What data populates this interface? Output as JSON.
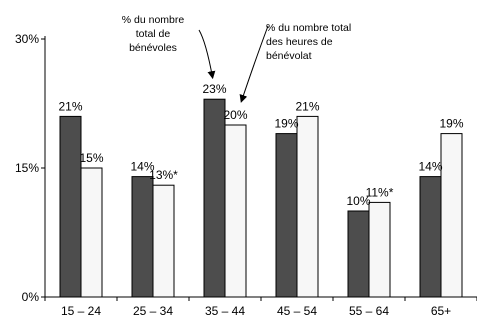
{
  "chart_data": {
    "type": "bar",
    "categories": [
      "15 – 24",
      "25 – 34",
      "35 – 44",
      "45 – 54",
      "55 – 64",
      "65+"
    ],
    "series": [
      {
        "name": "% du nombre total de bénévoles",
        "color": "#4d4d4d",
        "values": [
          21,
          14,
          23,
          19,
          10,
          14
        ],
        "labels": [
          "21%",
          "14%",
          "23%",
          "19%",
          "10%",
          "14%"
        ]
      },
      {
        "name": "% du nombre total des heures de bénévolat",
        "color": "#f7f7f7",
        "values": [
          15,
          13,
          20,
          21,
          11,
          19
        ],
        "labels": [
          "15%",
          "13%*",
          "20%",
          "21%",
          "11%*",
          "19%"
        ]
      }
    ],
    "yticks": [
      {
        "value": 0,
        "label": "0%"
      },
      {
        "value": 15,
        "label": "15%"
      },
      {
        "value": 30,
        "label": "30%"
      }
    ],
    "ylim": [
      0,
      30
    ],
    "grid": false,
    "legend": "annotations with arrows above the 35 – 44 group",
    "annotations": [
      {
        "lines": [
          "% du nombre",
          "total de",
          "bénévoles"
        ],
        "series": 0
      },
      {
        "lines": [
          "% du nombre total",
          "des heures de",
          "bénévolat"
        ],
        "series": 1
      }
    ]
  }
}
